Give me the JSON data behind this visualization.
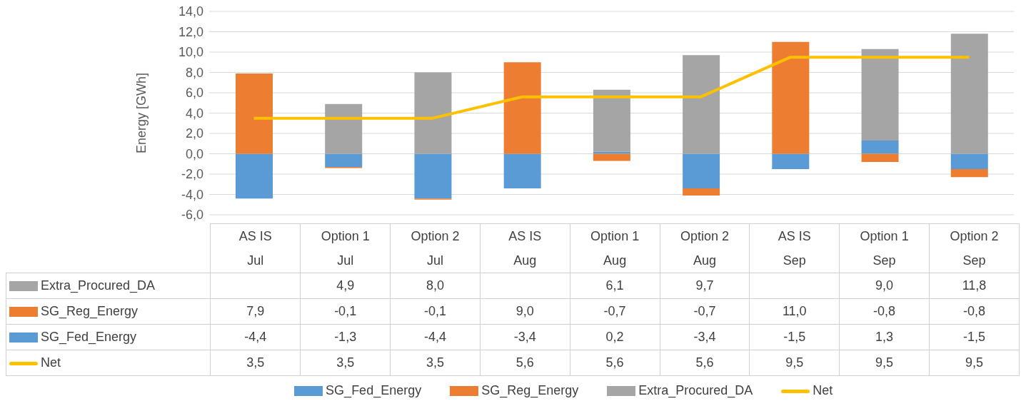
{
  "chart_data": {
    "type": "bar",
    "stacked": true,
    "ylabel": "Energy [GWh]",
    "categories": [
      "AS IS\nJul",
      "Option 1\nJul",
      "Option 2\nJul",
      "AS IS\nAug",
      "Option 1\nAug",
      "Option 2\nAug",
      "AS IS\nSep",
      "Option 1\nSep",
      "Option 2\nSep"
    ],
    "series": [
      {
        "name": "SG_Fed_Energy",
        "color": "#5b9bd5",
        "values": [
          -4.4,
          -1.3,
          -4.4,
          -3.4,
          0.2,
          -3.4,
          -1.5,
          1.3,
          -1.5
        ],
        "value_labels": [
          "-4,4",
          "-1,3",
          "-4,4",
          "-3,4",
          "0,2",
          "-3,4",
          "-1,5",
          "1,3",
          "-1,5"
        ]
      },
      {
        "name": "SG_Reg_Energy",
        "color": "#ed7d31",
        "values": [
          7.9,
          -0.1,
          -0.1,
          9.0,
          -0.7,
          -0.7,
          11.0,
          -0.8,
          -0.8
        ],
        "value_labels": [
          "7,9",
          "-0,1",
          "-0,1",
          "9,0",
          "-0,7",
          "-0,7",
          "11,0",
          "-0,8",
          "-0,8"
        ]
      },
      {
        "name": "Extra_Procured_DA",
        "color": "#a5a5a5",
        "values": [
          null,
          4.9,
          8.0,
          null,
          6.1,
          9.7,
          null,
          9.0,
          11.8
        ],
        "value_labels": [
          null,
          "4,9",
          "8,0",
          null,
          "6,1",
          "9,7",
          null,
          "9,0",
          "11,8"
        ]
      },
      {
        "name": "Net",
        "type": "line",
        "color": "#ffc000",
        "values": [
          3.5,
          3.5,
          3.5,
          5.6,
          5.6,
          5.6,
          9.5,
          9.5,
          9.5
        ],
        "value_labels": [
          "3,5",
          "3,5",
          "3,5",
          "5,6",
          "5,6",
          "5,6",
          "9,5",
          "9,5",
          "9,5"
        ]
      }
    ],
    "ylim": [
      -6,
      14
    ],
    "yticks": [
      {
        "value": -6,
        "label": "-6,0"
      },
      {
        "value": -4,
        "label": "-4,0"
      },
      {
        "value": -2,
        "label": "-2,0"
      },
      {
        "value": 0,
        "label": "0,0"
      },
      {
        "value": 2,
        "label": "2,0"
      },
      {
        "value": 4,
        "label": "4,0"
      },
      {
        "value": 6,
        "label": "6,0"
      },
      {
        "value": 8,
        "label": "8,0"
      },
      {
        "value": 10,
        "label": "10,0"
      },
      {
        "value": 12,
        "label": "12,0"
      },
      {
        "value": 14,
        "label": "14,0"
      }
    ],
    "grid": "y",
    "legend": "bottom",
    "marker": "none"
  }
}
